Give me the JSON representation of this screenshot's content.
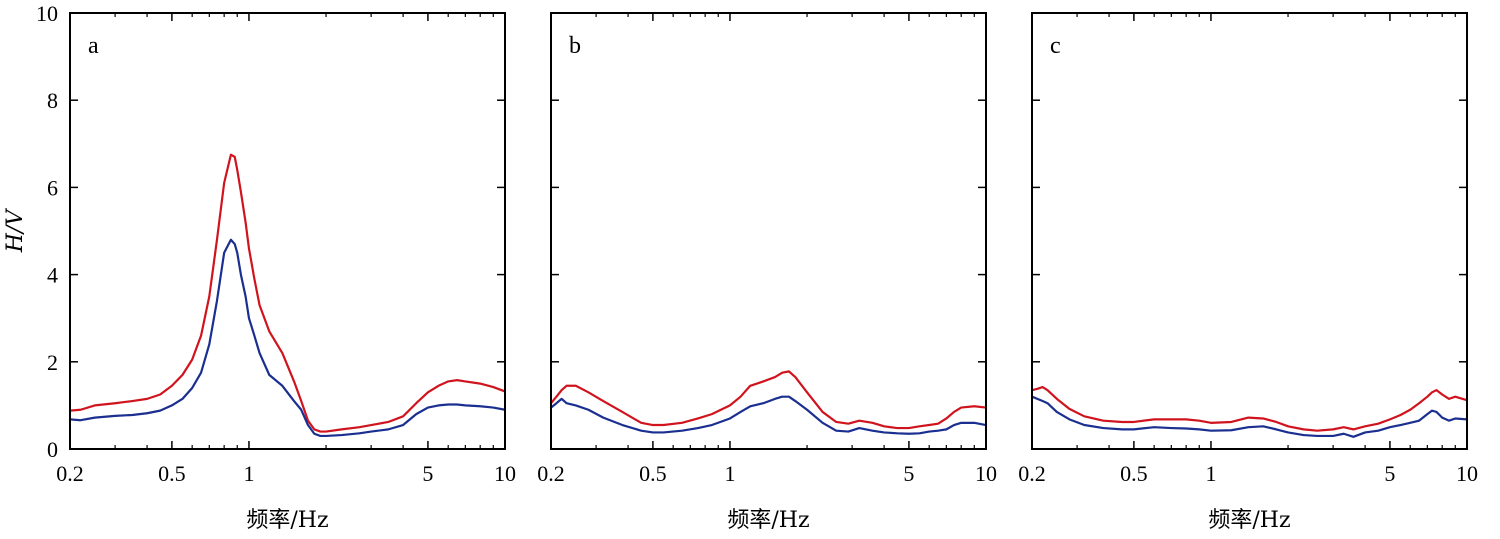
{
  "colors": {
    "upper": "#d0141e",
    "lower": "#1a2f8f",
    "frame": "#000000"
  },
  "chart_data": [
    {
      "type": "line",
      "panel_label": "a",
      "xlabel": "频率/Hz",
      "ylabel": "H/V",
      "xscale": "log",
      "xlim": [
        0.2,
        10
      ],
      "ylim": [
        0,
        10
      ],
      "xticks": [
        0.2,
        0.5,
        1,
        5,
        10
      ],
      "xtick_labels": [
        "0.2",
        "0.5",
        "1",
        "5",
        "10"
      ],
      "yticks": [
        0,
        2,
        4,
        6,
        8,
        10
      ],
      "ytick_labels": [
        "0",
        "2",
        "4",
        "6",
        "8",
        "10"
      ],
      "grid": false,
      "series": [
        {
          "role": "upper",
          "color": "#d0141e",
          "x": [
            0.2,
            0.22,
            0.25,
            0.3,
            0.35,
            0.4,
            0.45,
            0.5,
            0.55,
            0.6,
            0.65,
            0.7,
            0.75,
            0.8,
            0.85,
            0.88,
            0.9,
            0.93,
            0.97,
            1.0,
            1.05,
            1.1,
            1.2,
            1.35,
            1.5,
            1.6,
            1.7,
            1.8,
            1.9,
            2.0,
            2.3,
            2.7,
            3.0,
            3.5,
            4.0,
            4.5,
            5.0,
            5.5,
            6.0,
            6.5,
            7.0,
            8.0,
            9.0,
            10.0
          ],
          "y": [
            0.88,
            0.9,
            1.0,
            1.05,
            1.1,
            1.15,
            1.25,
            1.45,
            1.7,
            2.05,
            2.6,
            3.5,
            4.8,
            6.1,
            6.75,
            6.7,
            6.4,
            5.9,
            5.2,
            4.6,
            3.9,
            3.3,
            2.7,
            2.2,
            1.55,
            1.1,
            0.65,
            0.45,
            0.4,
            0.4,
            0.45,
            0.5,
            0.55,
            0.62,
            0.75,
            1.05,
            1.3,
            1.45,
            1.55,
            1.58,
            1.55,
            1.5,
            1.42,
            1.32
          ]
        },
        {
          "role": "lower",
          "color": "#1a2f8f",
          "x": [
            0.2,
            0.22,
            0.25,
            0.3,
            0.35,
            0.4,
            0.45,
            0.5,
            0.55,
            0.6,
            0.65,
            0.7,
            0.75,
            0.8,
            0.85,
            0.88,
            0.9,
            0.93,
            0.97,
            1.0,
            1.05,
            1.1,
            1.2,
            1.35,
            1.5,
            1.6,
            1.7,
            1.8,
            1.9,
            2.0,
            2.3,
            2.7,
            3.0,
            3.5,
            4.0,
            4.5,
            5.0,
            5.5,
            6.0,
            6.5,
            7.0,
            8.0,
            9.0,
            10.0
          ],
          "y": [
            0.68,
            0.66,
            0.72,
            0.76,
            0.78,
            0.82,
            0.88,
            1.0,
            1.15,
            1.4,
            1.75,
            2.4,
            3.4,
            4.5,
            4.8,
            4.7,
            4.5,
            4.0,
            3.5,
            3.0,
            2.6,
            2.2,
            1.7,
            1.45,
            1.1,
            0.9,
            0.55,
            0.35,
            0.3,
            0.3,
            0.32,
            0.36,
            0.4,
            0.45,
            0.55,
            0.8,
            0.95,
            1.0,
            1.02,
            1.02,
            1.0,
            0.98,
            0.95,
            0.9
          ]
        }
      ]
    },
    {
      "type": "line",
      "panel_label": "b",
      "xlabel": "频率/Hz",
      "ylabel": "",
      "xscale": "log",
      "xlim": [
        0.2,
        10
      ],
      "ylim": [
        0,
        10
      ],
      "xticks": [
        0.2,
        0.5,
        1,
        5,
        10
      ],
      "xtick_labels": [
        "0.2",
        "0.5",
        "1",
        "5",
        "10"
      ],
      "yticks": [
        0,
        2,
        4,
        6,
        8,
        10
      ],
      "ytick_labels": [],
      "grid": false,
      "series": [
        {
          "role": "upper",
          "color": "#d0141e",
          "x": [
            0.2,
            0.21,
            0.22,
            0.23,
            0.25,
            0.28,
            0.32,
            0.38,
            0.45,
            0.5,
            0.55,
            0.65,
            0.75,
            0.85,
            1.0,
            1.1,
            1.2,
            1.35,
            1.5,
            1.6,
            1.7,
            1.8,
            2.0,
            2.3,
            2.6,
            2.9,
            3.2,
            3.6,
            4.0,
            4.5,
            5.0,
            5.5,
            6.0,
            6.5,
            7.0,
            7.5,
            8.0,
            9.0,
            10.0
          ],
          "y": [
            1.05,
            1.2,
            1.35,
            1.45,
            1.45,
            1.3,
            1.1,
            0.85,
            0.6,
            0.55,
            0.55,
            0.6,
            0.7,
            0.8,
            1.0,
            1.2,
            1.45,
            1.55,
            1.65,
            1.75,
            1.78,
            1.65,
            1.3,
            0.85,
            0.62,
            0.58,
            0.65,
            0.6,
            0.52,
            0.48,
            0.48,
            0.52,
            0.55,
            0.58,
            0.7,
            0.85,
            0.95,
            0.98,
            0.95
          ]
        },
        {
          "role": "lower",
          "color": "#1a2f8f",
          "x": [
            0.2,
            0.21,
            0.22,
            0.23,
            0.25,
            0.28,
            0.32,
            0.38,
            0.45,
            0.5,
            0.55,
            0.65,
            0.75,
            0.85,
            1.0,
            1.1,
            1.2,
            1.35,
            1.5,
            1.6,
            1.7,
            1.8,
            2.0,
            2.3,
            2.6,
            2.9,
            3.2,
            3.6,
            4.0,
            4.5,
            5.0,
            5.5,
            6.0,
            6.5,
            7.0,
            7.5,
            8.0,
            9.0,
            10.0
          ],
          "y": [
            0.95,
            1.05,
            1.15,
            1.05,
            1.0,
            0.9,
            0.72,
            0.55,
            0.42,
            0.38,
            0.38,
            0.42,
            0.48,
            0.55,
            0.7,
            0.85,
            0.98,
            1.05,
            1.15,
            1.2,
            1.2,
            1.1,
            0.9,
            0.6,
            0.42,
            0.4,
            0.48,
            0.42,
            0.38,
            0.36,
            0.35,
            0.36,
            0.4,
            0.42,
            0.45,
            0.55,
            0.6,
            0.6,
            0.55
          ]
        }
      ]
    },
    {
      "type": "line",
      "panel_label": "c",
      "xlabel": "频率/Hz",
      "ylabel": "",
      "xscale": "log",
      "xlim": [
        0.2,
        10
      ],
      "ylim": [
        0,
        10
      ],
      "xticks": [
        0.2,
        0.5,
        1,
        5,
        10
      ],
      "xtick_labels": [
        "0.2",
        "0.5",
        "1",
        "5",
        "10"
      ],
      "yticks": [
        0,
        2,
        4,
        6,
        8,
        10
      ],
      "ytick_labels": [],
      "grid": false,
      "series": [
        {
          "role": "upper",
          "color": "#d0141e",
          "x": [
            0.2,
            0.21,
            0.22,
            0.23,
            0.25,
            0.28,
            0.32,
            0.38,
            0.45,
            0.5,
            0.6,
            0.7,
            0.8,
            0.9,
            1.0,
            1.2,
            1.4,
            1.6,
            1.8,
            2.0,
            2.3,
            2.6,
            3.0,
            3.3,
            3.6,
            4.0,
            4.5,
            5.0,
            5.5,
            6.0,
            6.5,
            7.0,
            7.3,
            7.6,
            8.0,
            8.5,
            9.0,
            10.0
          ],
          "y": [
            1.35,
            1.38,
            1.42,
            1.35,
            1.15,
            0.92,
            0.75,
            0.65,
            0.62,
            0.62,
            0.68,
            0.68,
            0.68,
            0.65,
            0.6,
            0.62,
            0.72,
            0.7,
            0.62,
            0.52,
            0.45,
            0.42,
            0.45,
            0.5,
            0.45,
            0.52,
            0.58,
            0.68,
            0.78,
            0.9,
            1.05,
            1.2,
            1.3,
            1.35,
            1.25,
            1.15,
            1.2,
            1.12
          ]
        },
        {
          "role": "lower",
          "color": "#1a2f8f",
          "x": [
            0.2,
            0.21,
            0.22,
            0.23,
            0.25,
            0.28,
            0.32,
            0.38,
            0.45,
            0.5,
            0.6,
            0.7,
            0.8,
            0.9,
            1.0,
            1.2,
            1.4,
            1.6,
            1.8,
            2.0,
            2.3,
            2.6,
            3.0,
            3.3,
            3.6,
            4.0,
            4.5,
            5.0,
            5.5,
            6.0,
            6.5,
            7.0,
            7.3,
            7.6,
            8.0,
            8.5,
            9.0,
            10.0
          ],
          "y": [
            1.2,
            1.15,
            1.1,
            1.05,
            0.85,
            0.68,
            0.55,
            0.48,
            0.45,
            0.45,
            0.5,
            0.48,
            0.47,
            0.45,
            0.42,
            0.43,
            0.5,
            0.52,
            0.45,
            0.38,
            0.32,
            0.3,
            0.3,
            0.35,
            0.28,
            0.38,
            0.42,
            0.5,
            0.55,
            0.6,
            0.65,
            0.8,
            0.88,
            0.85,
            0.72,
            0.65,
            0.7,
            0.68
          ]
        }
      ]
    }
  ]
}
